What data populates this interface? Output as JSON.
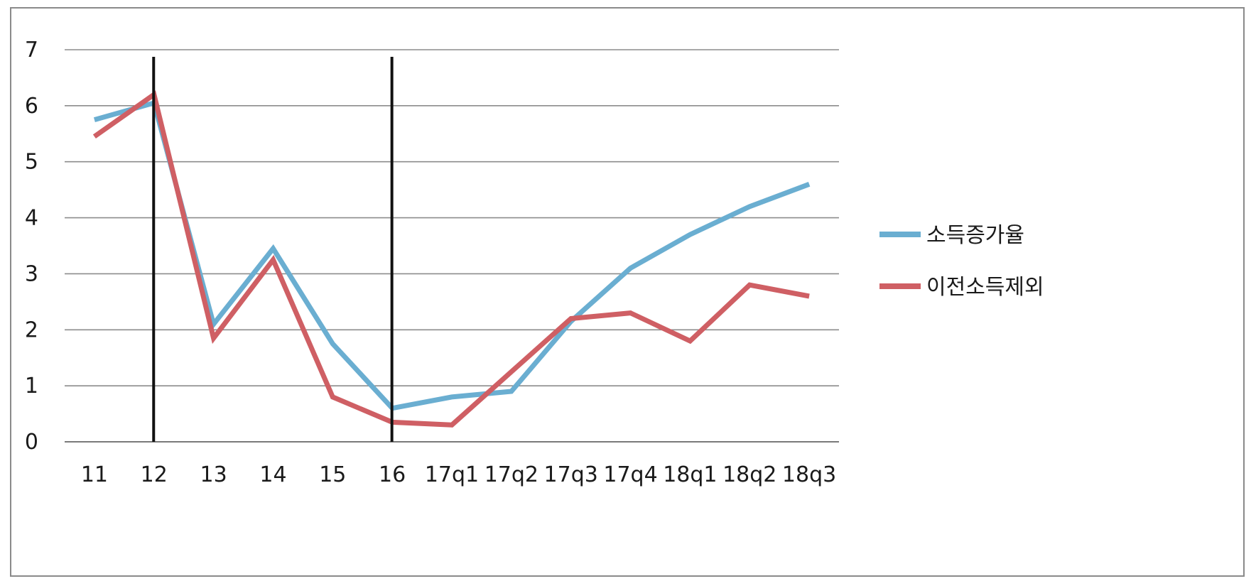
{
  "chart_data": {
    "type": "line",
    "title": "",
    "xlabel": "",
    "ylabel": "",
    "categories": [
      "11",
      "12",
      "13",
      "14",
      "15",
      "16",
      "17q1",
      "17q2",
      "17q3",
      "17q4",
      "18q1",
      "18q2",
      "18q3"
    ],
    "ylim": [
      0,
      7
    ],
    "yticks": [
      "0",
      "1",
      "2",
      "3",
      "4",
      "5",
      "6",
      "7"
    ],
    "grid": true,
    "legend_position": "right",
    "series": [
      {
        "name": "소득증가율",
        "color": "#6aaed1",
        "values": [
          5.75,
          6.05,
          2.1,
          3.45,
          1.75,
          0.6,
          0.8,
          0.9,
          2.15,
          3.1,
          3.7,
          4.2,
          4.6
        ]
      },
      {
        "name": "이전소득제외",
        "color": "#cf5f64",
        "values": [
          5.45,
          6.2,
          1.85,
          3.25,
          0.8,
          0.35,
          0.3,
          1.25,
          2.2,
          2.3,
          1.8,
          2.8,
          2.6
        ]
      }
    ],
    "vertical_markers": [
      {
        "category": "12",
        "color": "#111111"
      },
      {
        "category": "16",
        "color": "#111111"
      }
    ]
  }
}
